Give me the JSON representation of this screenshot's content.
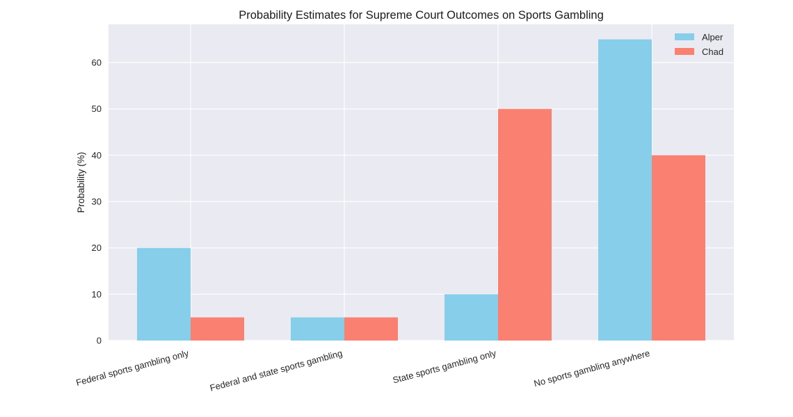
{
  "chart_data": {
    "type": "bar",
    "title": "Probability Estimates for Supreme Court Outcomes on Sports Gambling",
    "xlabel": "",
    "ylabel": "Probability (%)",
    "categories": [
      "Federal sports gambling only",
      "Federal and state sports gambling",
      "State sports gambling only",
      "No sports gambling anywhere"
    ],
    "series": [
      {
        "name": "Alper",
        "color": "#87ceeb",
        "values": [
          20,
          5,
          10,
          65
        ]
      },
      {
        "name": "Chad",
        "color": "#fa8072",
        "values": [
          5,
          5,
          50,
          40
        ]
      }
    ],
    "ylim": [
      0,
      68.25
    ],
    "yticks": [
      0,
      10,
      20,
      30,
      40,
      50,
      60
    ],
    "grid": true,
    "legend_position": "top-right",
    "background_color": "#eaeaf2",
    "grid_color": "#ffffff"
  }
}
